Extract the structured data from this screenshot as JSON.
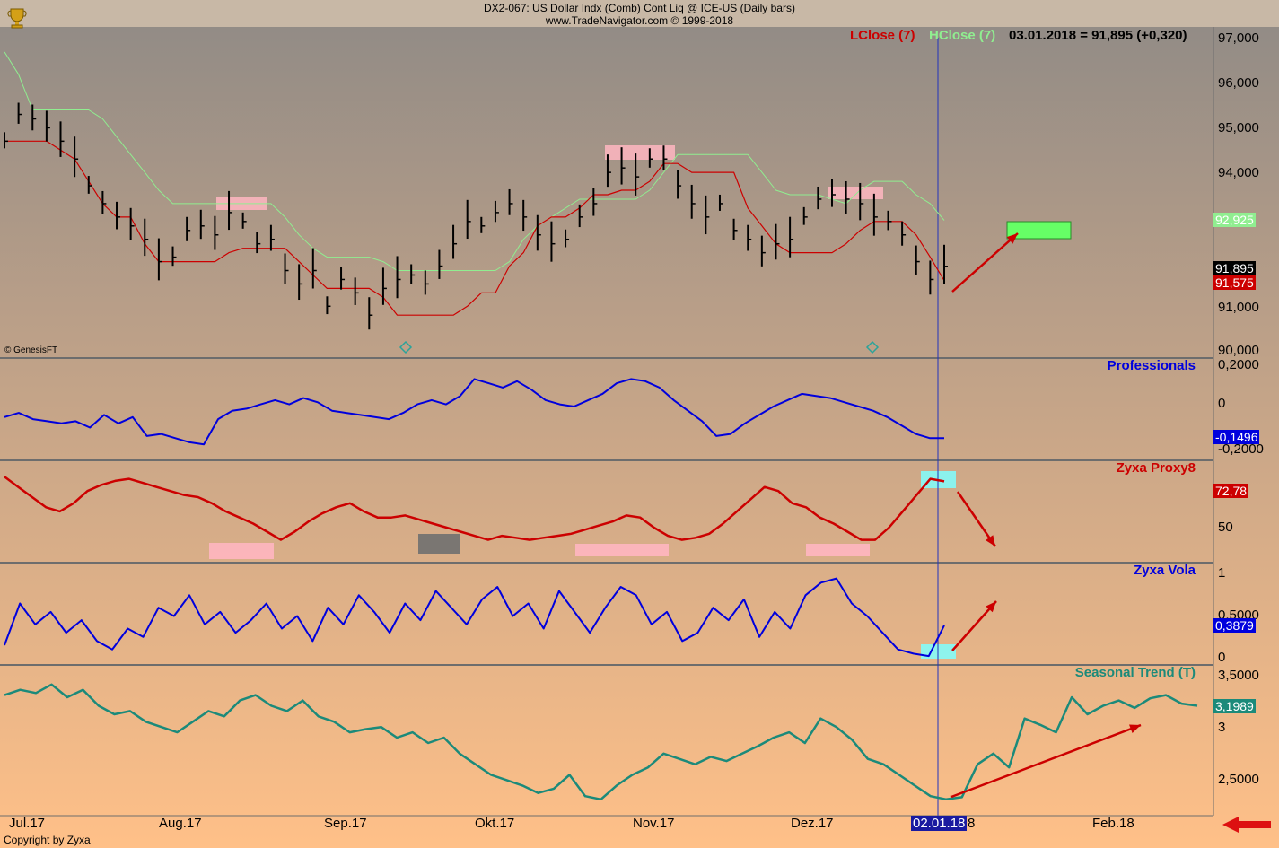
{
  "header": {
    "line1": "DX2-067:  US Dollar Indx (Comb) Cont Liq @ ICE-US  (Daily bars)",
    "line2": "www.TradeNavigator.com © 1999-2018"
  },
  "legend": {
    "lclose": "LClose (7)",
    "hclose": "HClose (7)",
    "readout": "03.01.2018 = 91,895 (+0,320)"
  },
  "colors": {
    "lclose": "#cc0000",
    "hclose": "#90ee90",
    "professionals": "#0000dd",
    "proxy": "#cc0000",
    "vola": "#0000dd",
    "seasonal": "#1b8a7a",
    "cursor": "#2233bb",
    "arrow": "#cc0000"
  },
  "watermark": "© GenesisFT",
  "copyright": "Copyright by Zyxa",
  "cursor_label": "02.01.18",
  "x_axis": {
    "labels": [
      "Jul.17",
      "Aug.17",
      "Sep.17",
      "Okt.17",
      "Nov.17",
      "Dez.17",
      "8",
      "Feb.18"
    ]
  },
  "chart_data": [
    {
      "type": "line",
      "panel": "price",
      "ylim": [
        90000,
        97000
      ],
      "yticks": [
        "97,000",
        "96,000",
        "95,000",
        "94,000",
        "91,000",
        "90,000"
      ],
      "tags": {
        "hclose": "92,925",
        "last": "91,895",
        "lclose": "91,575"
      },
      "series": [
        {
          "name": "LClose (7)",
          "values": [
            94700,
            94700,
            94700,
            94700,
            94500,
            94300,
            93800,
            93300,
            93000,
            93000,
            92400,
            92000,
            92000,
            92000,
            92000,
            92000,
            92200,
            92300,
            92300,
            92300,
            92300,
            92000,
            91700,
            91400,
            91400,
            91400,
            91400,
            91200,
            90800,
            90800,
            90800,
            90800,
            90800,
            91000,
            91300,
            91300,
            91900,
            92200,
            92800,
            93000,
            93000,
            93200,
            93500,
            93500,
            93600,
            93600,
            93800,
            94200,
            94200,
            94000,
            94000,
            94000,
            94000,
            93200,
            92800,
            92400,
            92200,
            92200,
            92200,
            92200,
            92400,
            92700,
            92900,
            92900,
            92900,
            92600,
            92100,
            91575
          ]
        },
        {
          "name": "HClose (7)",
          "values": [
            96700,
            96200,
            95400,
            95400,
            95400,
            95400,
            95400,
            95200,
            94800,
            94400,
            94000,
            93600,
            93300,
            93300,
            93300,
            93300,
            93300,
            93300,
            93300,
            93300,
            93000,
            92600,
            92300,
            92100,
            92100,
            92100,
            92100,
            92000,
            91800,
            91800,
            91800,
            91800,
            91800,
            91800,
            91800,
            91800,
            92000,
            92500,
            92800,
            93000,
            93200,
            93400,
            93400,
            93400,
            93400,
            93400,
            93600,
            94000,
            94400,
            94400,
            94400,
            94400,
            94400,
            94400,
            94000,
            93600,
            93500,
            93500,
            93500,
            93400,
            93300,
            93600,
            93800,
            93800,
            93800,
            93500,
            93300,
            92925
          ]
        },
        {
          "name": "Close",
          "values": [
            94700,
            95300,
            95200,
            95000,
            94700,
            94300,
            93700,
            93300,
            93000,
            92800,
            92500,
            92000,
            92100,
            92700,
            92800,
            92600,
            93100,
            92900,
            92400,
            92500,
            91800,
            91500,
            91800,
            91000,
            91600,
            91300,
            90800,
            91400,
            91600,
            91700,
            91500,
            91900,
            92400,
            92900,
            92800,
            93100,
            93300,
            93000,
            92600,
            92400,
            92500,
            93000,
            93300,
            94000,
            94100,
            93900,
            94300,
            94300,
            93700,
            93300,
            93000,
            93300,
            92700,
            92500,
            92200,
            92400,
            92500,
            93000,
            93400,
            93500,
            93400,
            93300,
            93000,
            92900,
            92600,
            92000,
            91600,
            91895
          ]
        }
      ]
    },
    {
      "type": "line",
      "panel": "professionals",
      "title": "Professionals",
      "ylim": [
        -0.2,
        0.2
      ],
      "yticks": [
        "0,2000",
        "0",
        "-0,2000"
      ],
      "tag": "-0,1496",
      "values": [
        -0.05,
        -0.03,
        -0.06,
        -0.07,
        -0.08,
        -0.07,
        -0.1,
        -0.04,
        -0.08,
        -0.05,
        -0.14,
        -0.13,
        -0.15,
        -0.17,
        -0.18,
        -0.06,
        -0.02,
        -0.01,
        0.01,
        0.03,
        0.01,
        0.04,
        0.02,
        -0.02,
        -0.03,
        -0.04,
        -0.05,
        -0.06,
        -0.03,
        0.01,
        0.03,
        0.01,
        0.05,
        0.13,
        0.11,
        0.09,
        0.12,
        0.08,
        0.03,
        0.01,
        0.0,
        0.03,
        0.06,
        0.11,
        0.13,
        0.12,
        0.09,
        0.03,
        -0.02,
        -0.07,
        -0.14,
        -0.13,
        -0.08,
        -0.04,
        0.0,
        0.03,
        0.06,
        0.05,
        0.04,
        0.02,
        0.0,
        -0.02,
        -0.05,
        -0.09,
        -0.13,
        -0.15,
        -0.1496
      ]
    },
    {
      "type": "line",
      "panel": "proxy",
      "title": "Zyxa Proxy8",
      "ylim": [
        35,
        80
      ],
      "yticks": [
        "50"
      ],
      "tag": "72,78",
      "values": [
        75,
        70,
        65,
        60,
        58,
        62,
        68,
        71,
        73,
        74,
        72,
        70,
        68,
        66,
        65,
        62,
        58,
        55,
        52,
        48,
        44,
        48,
        53,
        57,
        60,
        62,
        58,
        55,
        55,
        56,
        54,
        52,
        50,
        48,
        46,
        44,
        46,
        45,
        44,
        45,
        46,
        47,
        49,
        51,
        53,
        56,
        55,
        50,
        46,
        44,
        45,
        47,
        52,
        58,
        64,
        70,
        68,
        62,
        60,
        55,
        52,
        48,
        44,
        44,
        50,
        58,
        66,
        74,
        72.78
      ]
    },
    {
      "type": "line",
      "panel": "vola",
      "title": "Zyxa Vola",
      "ylim": [
        0,
        1
      ],
      "yticks": [
        "1",
        "0,5000",
        "0"
      ],
      "tag": "0,3879",
      "values": [
        0.15,
        0.65,
        0.4,
        0.55,
        0.3,
        0.45,
        0.2,
        0.1,
        0.35,
        0.25,
        0.6,
        0.5,
        0.75,
        0.4,
        0.55,
        0.3,
        0.45,
        0.65,
        0.35,
        0.5,
        0.2,
        0.6,
        0.4,
        0.75,
        0.55,
        0.3,
        0.65,
        0.45,
        0.8,
        0.6,
        0.4,
        0.7,
        0.85,
        0.5,
        0.65,
        0.35,
        0.8,
        0.55,
        0.3,
        0.6,
        0.85,
        0.75,
        0.4,
        0.55,
        0.2,
        0.3,
        0.6,
        0.45,
        0.7,
        0.25,
        0.55,
        0.35,
        0.75,
        0.9,
        0.95,
        0.65,
        0.5,
        0.3,
        0.1,
        0.05,
        0.02,
        0.3879
      ]
    },
    {
      "type": "line",
      "panel": "seasonal",
      "title": "Seasonal Trend (T)",
      "ylim": [
        2.2,
        3.55
      ],
      "yticks": [
        "3,5000",
        "3",
        "2,5000"
      ],
      "tag": "3,1989",
      "values": [
        3.3,
        3.35,
        3.32,
        3.4,
        3.28,
        3.35,
        3.2,
        3.12,
        3.15,
        3.05,
        3.0,
        2.95,
        3.05,
        3.15,
        3.1,
        3.25,
        3.3,
        3.2,
        3.15,
        3.25,
        3.1,
        3.05,
        2.95,
        2.98,
        3.0,
        2.9,
        2.95,
        2.85,
        2.9,
        2.75,
        2.65,
        2.55,
        2.5,
        2.45,
        2.38,
        2.42,
        2.55,
        2.35,
        2.32,
        2.45,
        2.55,
        2.62,
        2.75,
        2.7,
        2.65,
        2.72,
        2.68,
        2.75,
        2.82,
        2.9,
        2.95,
        2.85,
        3.08,
        3.0,
        2.88,
        2.7,
        2.65,
        2.55,
        2.45,
        2.35,
        2.32,
        2.34,
        2.65,
        2.75,
        2.62,
        3.08,
        3.02,
        2.95,
        3.28,
        3.12,
        3.2,
        3.25,
        3.18,
        3.27,
        3.3,
        3.22,
        3.2
      ]
    }
  ]
}
